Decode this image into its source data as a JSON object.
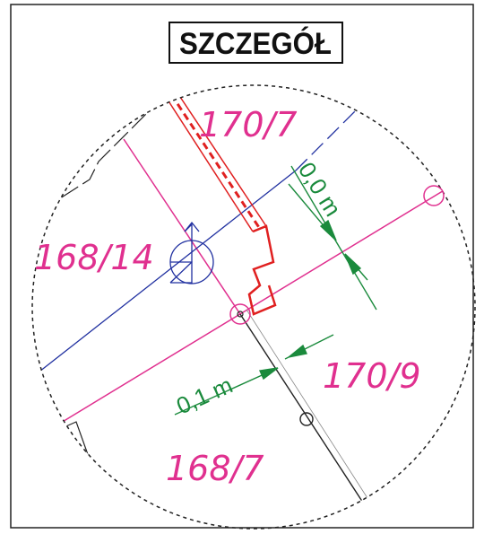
{
  "title": "SZCZEGÓŁ",
  "parcels": [
    "170/7",
    "168/14",
    "170/9",
    "168/7"
  ],
  "dimensions": [
    "0,0 m",
    "0,1 m"
  ]
}
